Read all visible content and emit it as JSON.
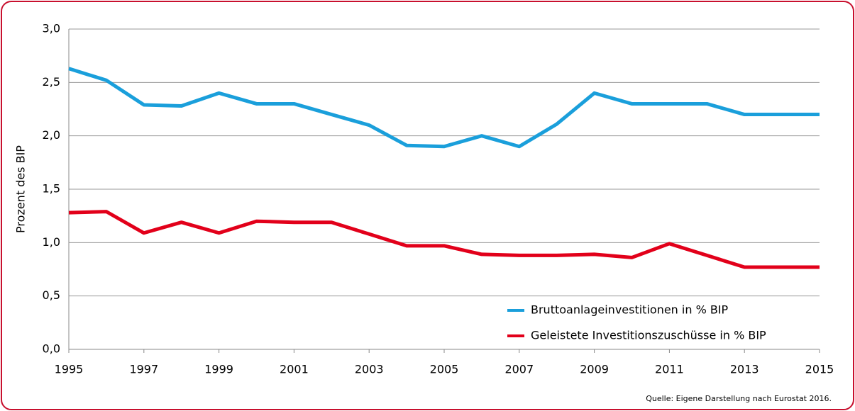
{
  "chart_data": {
    "type": "line",
    "y_label": "Prozent des BIP",
    "source": "Quelle: Eigene Darstellung nach Eurostat 2016.",
    "x": [
      1995,
      1996,
      1997,
      1998,
      1999,
      2000,
      2001,
      2002,
      2003,
      2004,
      2005,
      2006,
      2007,
      2008,
      2009,
      2010,
      2011,
      2012,
      2013,
      2014,
      2015
    ],
    "xlim": [
      1995,
      2015
    ],
    "xticks": [
      1995,
      1997,
      1999,
      2001,
      2003,
      2005,
      2007,
      2009,
      2011,
      2013,
      2015
    ],
    "ylim": [
      0,
      3
    ],
    "yticks": [
      {
        "value": 0,
        "label": "0,0"
      },
      {
        "value": 0.5,
        "label": "0,5"
      },
      {
        "value": 1,
        "label": "1,0"
      },
      {
        "value": 1.5,
        "label": "1,5"
      },
      {
        "value": 2,
        "label": "2,0"
      },
      {
        "value": 2.5,
        "label": "2,5"
      },
      {
        "value": 3,
        "label": "3,0"
      }
    ],
    "grid": true,
    "legend": "lower right",
    "series": [
      {
        "name": "Bruttoanlageinvestitionen in % BIP",
        "color": "#1a9fdb",
        "values": [
          2.63,
          2.52,
          2.29,
          2.28,
          2.4,
          2.3,
          2.3,
          2.2,
          2.1,
          1.91,
          1.9,
          2.0,
          1.9,
          2.11,
          2.4,
          2.3,
          2.3,
          2.3,
          2.2,
          2.2,
          2.2
        ]
      },
      {
        "name": "Geleistete Investitionszuschüsse in % BIP",
        "color": "#e2001a",
        "values": [
          1.28,
          1.29,
          1.09,
          1.19,
          1.09,
          1.2,
          1.19,
          1.19,
          1.08,
          0.97,
          0.97,
          0.89,
          0.88,
          0.88,
          0.89,
          0.86,
          0.99,
          0.88,
          0.77,
          0.77,
          0.77
        ]
      }
    ]
  }
}
